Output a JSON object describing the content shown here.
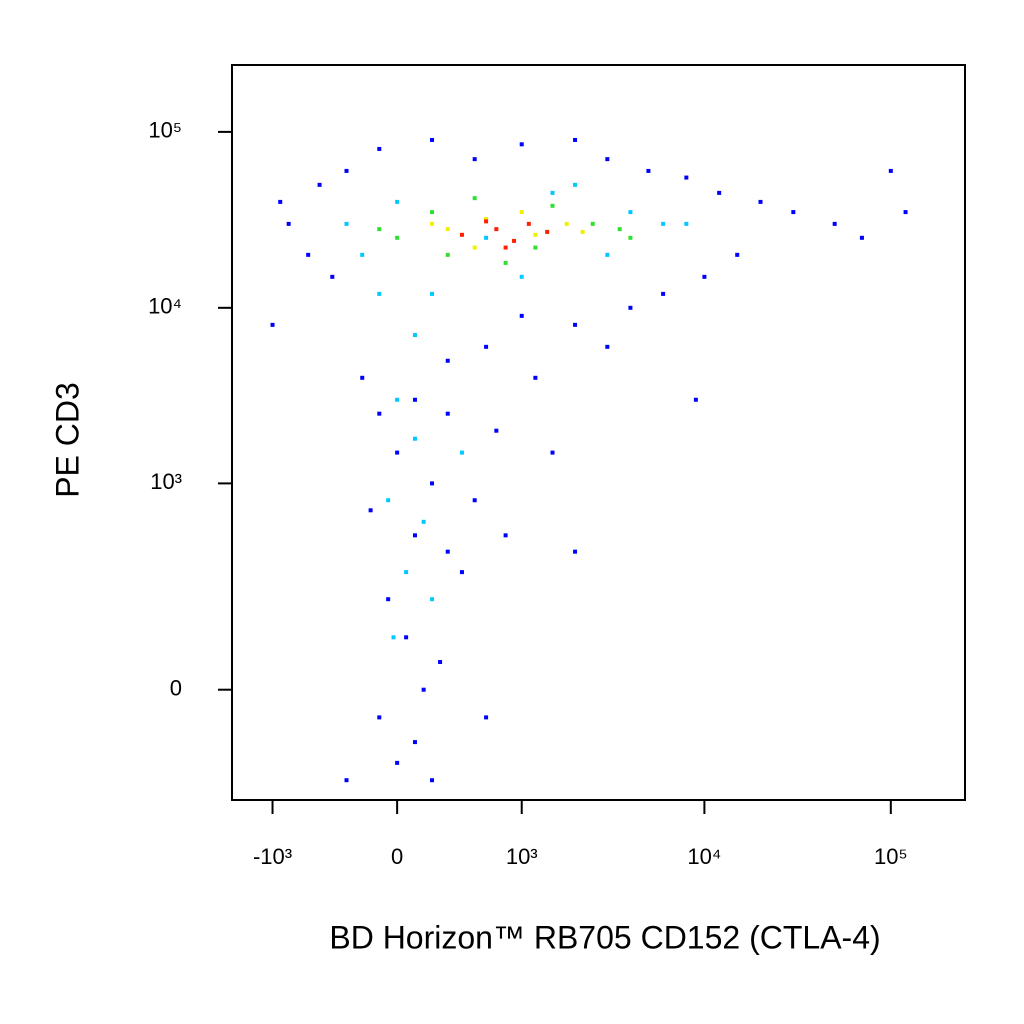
{
  "chart_data": {
    "type": "scatter",
    "x_label": "BD Horizon™ RB705 CD152 (CTLA-4)",
    "y_label": "PE CD3",
    "scale": "biexponential",
    "xlim": [
      -1700,
      250000
    ],
    "ylim": [
      -270,
      240000
    ],
    "xticks": [
      {
        "value": -1000,
        "label": "-10³"
      },
      0,
      {
        "value": 1000,
        "label": "10³"
      },
      {
        "value": 10000,
        "label": "10⁴"
      },
      {
        "value": 100000,
        "label": "10⁵"
      }
    ],
    "yticks": [
      0,
      {
        "value": 1000,
        "label": "10³"
      },
      {
        "value": 10000,
        "label": "10⁴"
      },
      {
        "value": 100000,
        "label": "10⁵"
      }
    ],
    "series": [
      {
        "color": "#0000ff",
        "x": [
          -800,
          -500,
          -300,
          -600,
          -400,
          -100,
          200,
          500,
          1000,
          2000,
          3000,
          5000,
          8000,
          12000,
          20000,
          30000,
          50000,
          70000,
          15000,
          10000,
          6000,
          4000,
          2000,
          1000,
          600,
          300,
          100,
          -100,
          0,
          200,
          -150,
          100,
          300,
          -50,
          50,
          150,
          -100,
          0,
          100,
          250,
          400,
          700,
          1200,
          3000,
          9000,
          300,
          -200,
          500,
          1500,
          2000,
          -1000,
          -900,
          100000,
          120000,
          -300,
          200,
          600,
          800
        ],
        "y": [
          30000,
          50000,
          60000,
          20000,
          15000,
          80000,
          90000,
          70000,
          85000,
          90000,
          70000,
          60000,
          55000,
          45000,
          40000,
          35000,
          30000,
          25000,
          20000,
          15000,
          12000,
          10000,
          8000,
          9000,
          6000,
          5000,
          3000,
          2500,
          1500,
          1000,
          700,
          500,
          400,
          200,
          100,
          0,
          -50,
          -150,
          -100,
          50,
          300,
          2000,
          4000,
          6000,
          3000,
          2500,
          4000,
          800,
          1500,
          400,
          8000,
          40000,
          60000,
          35000,
          -200,
          -200,
          -50,
          500
        ]
      },
      {
        "color": "#00c8ff",
        "x": [
          -300,
          -200,
          0,
          2000,
          4000,
          6000,
          3000,
          1000,
          200,
          100,
          0,
          100,
          -50,
          150,
          50,
          -20,
          200,
          400,
          8000,
          1500,
          -100,
          600
        ],
        "y": [
          30000,
          20000,
          40000,
          50000,
          35000,
          30000,
          20000,
          15000,
          12000,
          7000,
          3000,
          1800,
          800,
          600,
          300,
          100,
          200,
          1500,
          30000,
          45000,
          12000,
          25000
        ]
      },
      {
        "color": "#30e030",
        "x": [
          0,
          200,
          500,
          1500,
          2500,
          3500,
          800,
          300,
          -100,
          1200,
          4000
        ],
        "y": [
          25000,
          35000,
          42000,
          38000,
          30000,
          28000,
          18000,
          20000,
          28000,
          22000,
          25000
        ]
      },
      {
        "color": "#f0f000",
        "x": [
          300,
          600,
          1000,
          1800,
          500,
          1200,
          200,
          2200
        ],
        "y": [
          28000,
          32000,
          35000,
          30000,
          22000,
          26000,
          30000,
          27000
        ]
      },
      {
        "color": "#ff2000",
        "x": [
          400,
          700,
          900,
          1100,
          600,
          800,
          1400
        ],
        "y": [
          26000,
          28000,
          24000,
          30000,
          31000,
          22000,
          27000
        ]
      }
    ]
  }
}
